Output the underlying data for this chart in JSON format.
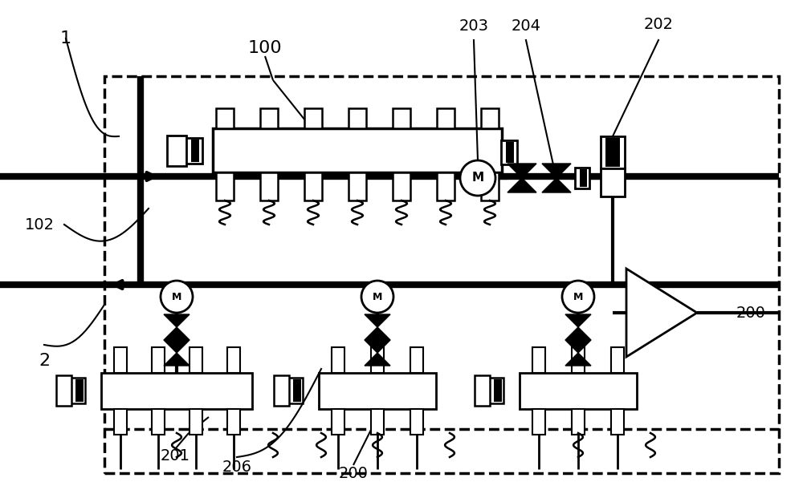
{
  "bg_color": "#ffffff",
  "figsize": [
    10.0,
    6.21
  ],
  "dpi": 100,
  "xlim": [
    0,
    1000
  ],
  "ylim": [
    0,
    621
  ]
}
